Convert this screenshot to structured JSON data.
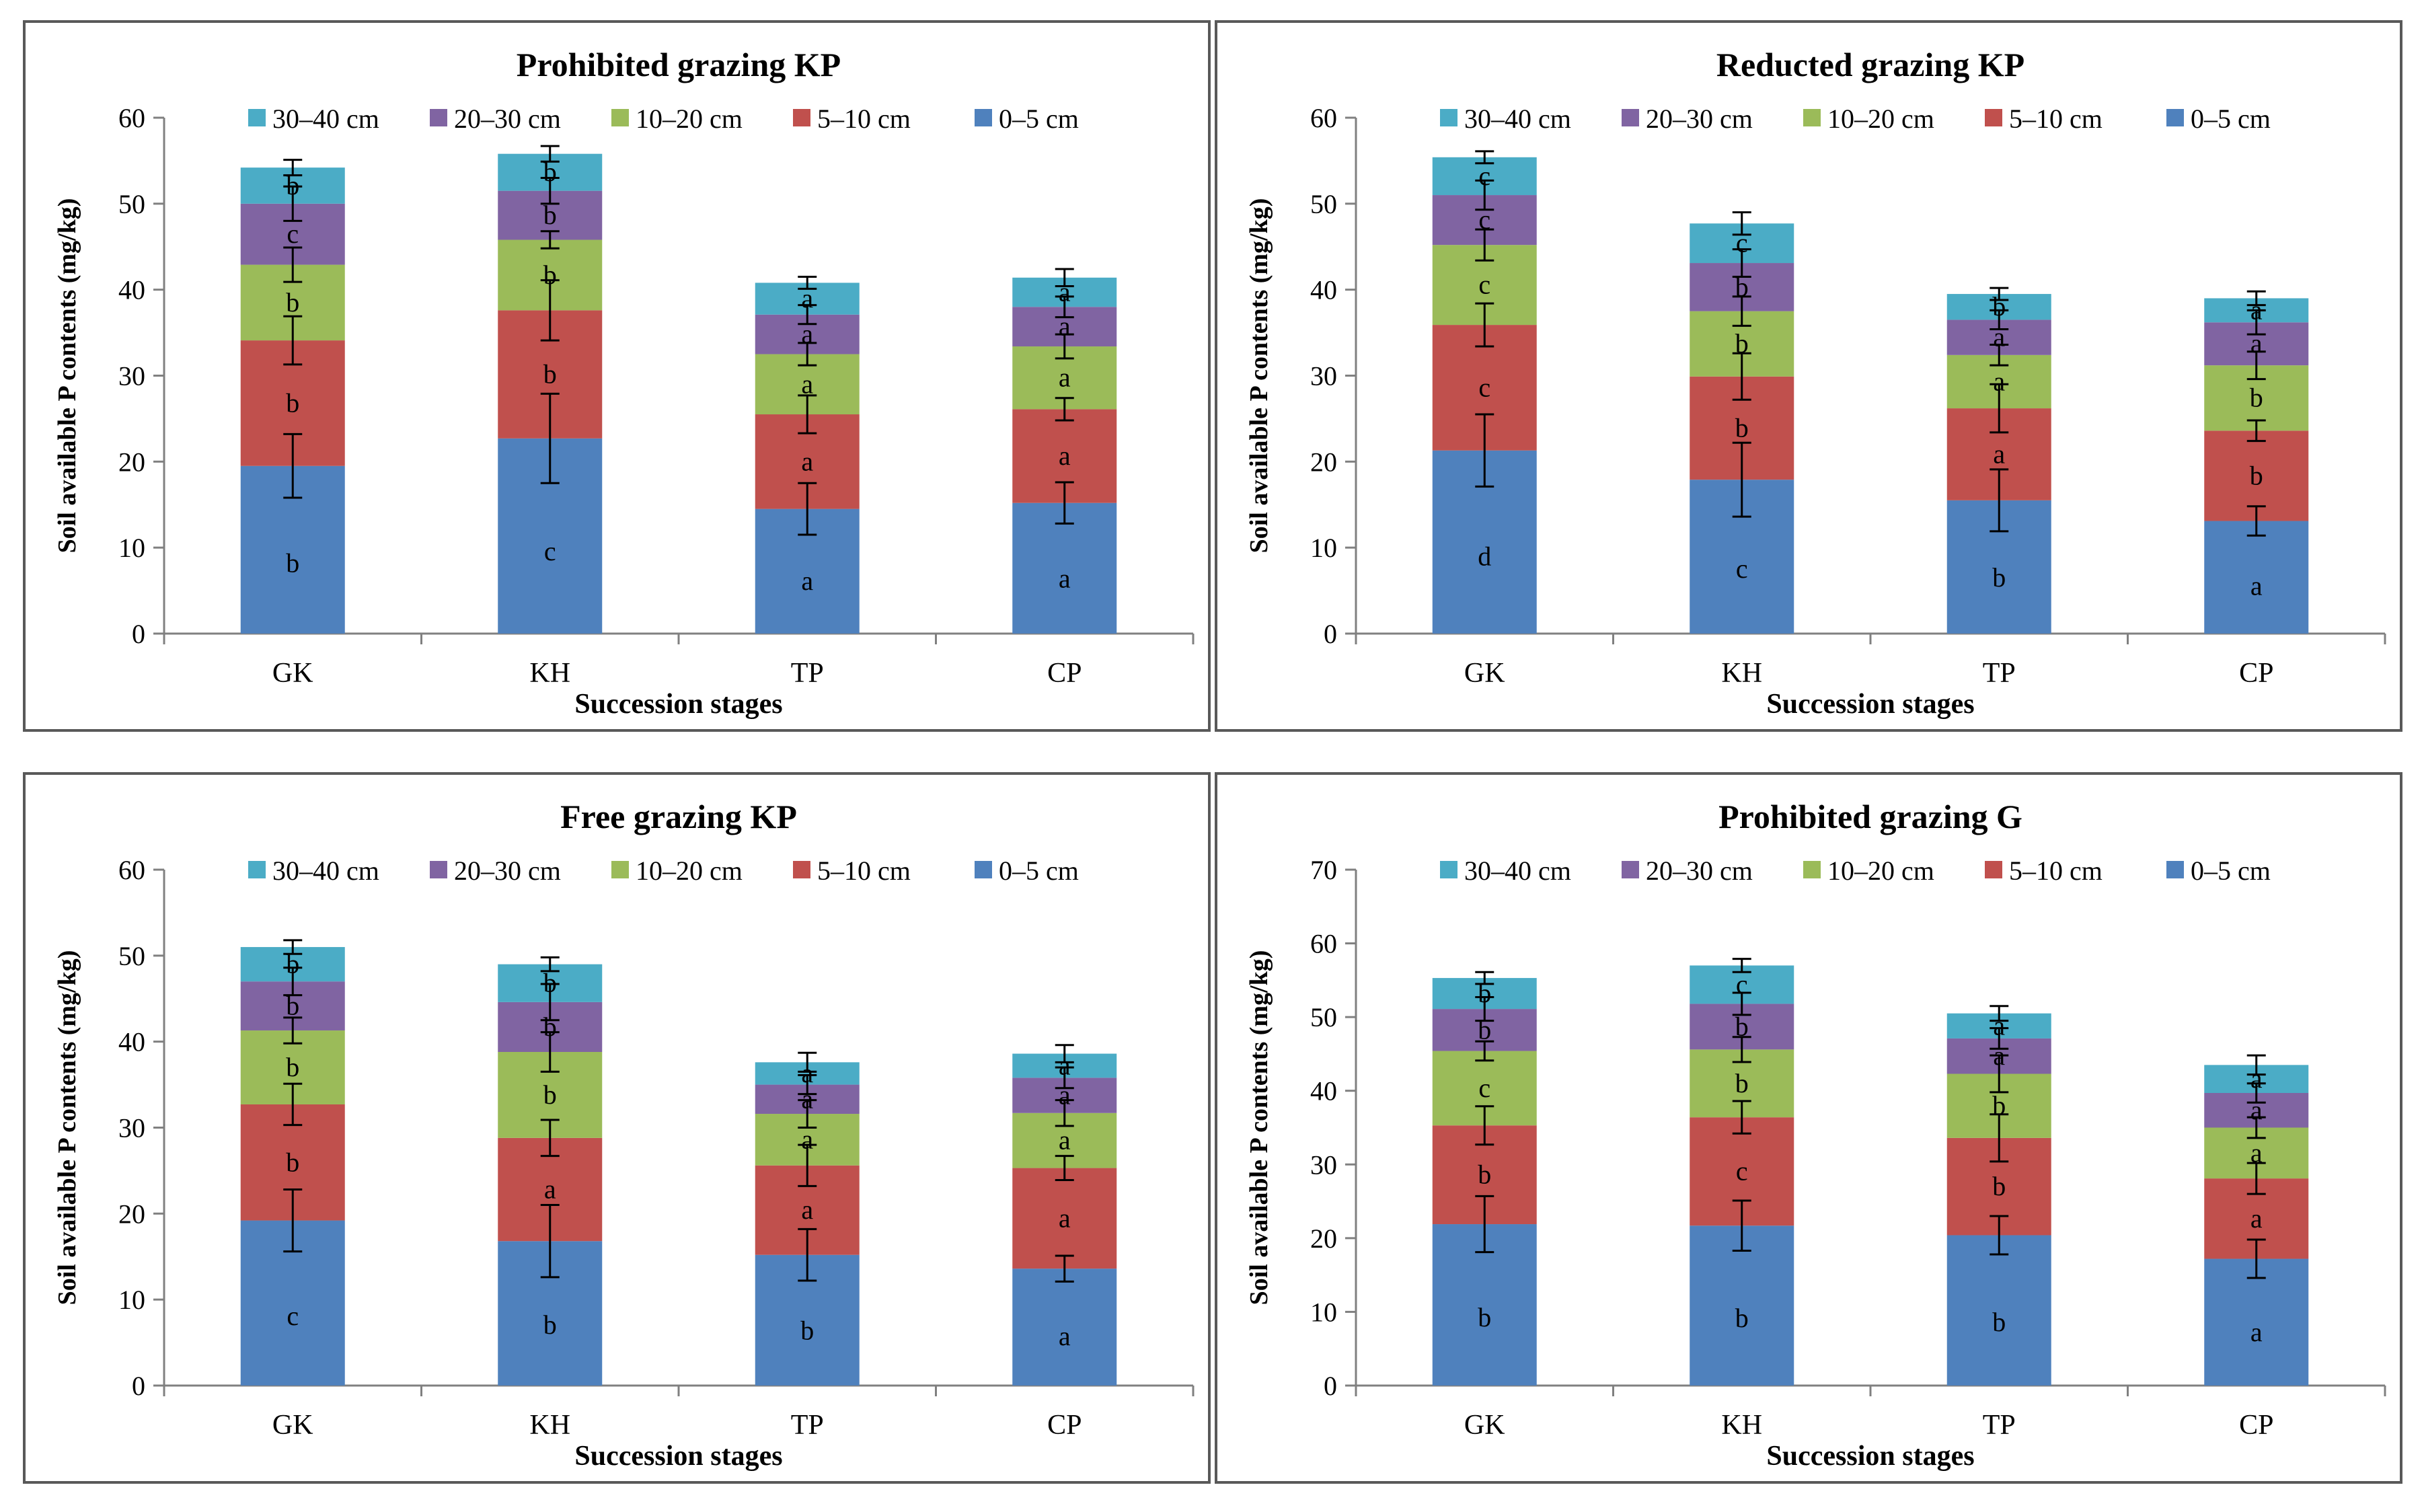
{
  "chart_data": [
    {
      "type": "bar",
      "stacked": true,
      "title": "Prohibited grazing KP",
      "xlabel": "Succession stages",
      "ylabel": "Soil available P contents (mg/kg)",
      "ylim": [
        0,
        60
      ],
      "yticks": [
        0,
        10,
        20,
        30,
        40,
        50,
        60
      ],
      "categories": [
        "GK",
        "KH",
        "TP",
        "CP"
      ],
      "legend_position": "top",
      "series": [
        {
          "name": "0–5 cm",
          "color": "#4F81BD",
          "values": [
            19.5,
            22.7,
            14.5,
            15.2
          ],
          "errors": [
            3.7,
            5.2,
            3.0,
            2.4
          ],
          "letters": [
            "b",
            "c",
            "a",
            "a"
          ]
        },
        {
          "name": "5–10 cm",
          "color": "#C0504D",
          "values": [
            14.6,
            14.9,
            11.0,
            10.9
          ],
          "errors": [
            2.8,
            3.5,
            2.2,
            1.3
          ],
          "letters": [
            "b",
            "b",
            "a",
            "a"
          ]
        },
        {
          "name": "10–20 cm",
          "color": "#9BBB59",
          "values": [
            8.8,
            8.2,
            7.0,
            7.3
          ],
          "errors": [
            2.0,
            1.0,
            1.3,
            1.4
          ],
          "letters": [
            "b",
            "b",
            "a",
            "a"
          ]
        },
        {
          "name": "20–30 cm",
          "color": "#8064A2",
          "values": [
            7.1,
            5.7,
            4.6,
            4.6
          ],
          "errors": [
            2.0,
            1.5,
            1.1,
            1.2
          ],
          "letters": [
            "c",
            "b",
            "a",
            "a"
          ]
        },
        {
          "name": "30–40 cm",
          "color": "#4BACC6",
          "values": [
            4.2,
            4.3,
            3.7,
            3.4
          ],
          "errors": [
            0.9,
            0.9,
            0.7,
            1.0
          ],
          "letters": [
            "b",
            "b",
            "a",
            "a"
          ]
        }
      ]
    },
    {
      "type": "bar",
      "stacked": true,
      "title": "Reducted grazing KP",
      "xlabel": "Succession stages",
      "ylabel": "Soil available P contents (mg/kg)",
      "ylim": [
        0,
        60
      ],
      "yticks": [
        0,
        10,
        20,
        30,
        40,
        50,
        60
      ],
      "categories": [
        "GK",
        "KH",
        "TP",
        "CP"
      ],
      "legend_position": "top",
      "series": [
        {
          "name": "0–5 cm",
          "color": "#4F81BD",
          "values": [
            21.3,
            17.9,
            15.5,
            13.1
          ],
          "errors": [
            4.2,
            4.3,
            3.6,
            1.7
          ],
          "letters": [
            "d",
            "c",
            "b",
            "a"
          ]
        },
        {
          "name": "5–10 cm",
          "color": "#C0504D",
          "values": [
            14.6,
            12.0,
            10.7,
            10.5
          ],
          "errors": [
            2.5,
            2.7,
            2.8,
            1.2
          ],
          "letters": [
            "c",
            "b",
            "a",
            "b"
          ]
        },
        {
          "name": "10–20 cm",
          "color": "#9BBB59",
          "values": [
            9.3,
            7.6,
            6.2,
            7.6
          ],
          "errors": [
            1.8,
            1.7,
            1.2,
            1.6
          ],
          "letters": [
            "c",
            "b",
            "a",
            "b"
          ]
        },
        {
          "name": "20–30 cm",
          "color": "#8064A2",
          "values": [
            5.8,
            5.6,
            4.1,
            5.0
          ],
          "errors": [
            1.7,
            1.6,
            1.1,
            1.4
          ],
          "letters": [
            "c",
            "b",
            "a",
            "a"
          ]
        },
        {
          "name": "30–40 cm",
          "color": "#4BACC6",
          "values": [
            4.4,
            4.6,
            3.0,
            2.8
          ],
          "errors": [
            0.7,
            1.3,
            0.7,
            0.8
          ],
          "letters": [
            "c",
            "c",
            "b",
            "a"
          ]
        }
      ]
    },
    {
      "type": "bar",
      "stacked": true,
      "title": "Free grazing KP",
      "xlabel": "Succession stages",
      "ylabel": "Soil available P contents (mg/kg)",
      "ylim": [
        0,
        60
      ],
      "yticks": [
        0,
        10,
        20,
        30,
        40,
        50,
        60
      ],
      "categories": [
        "GK",
        "KH",
        "TP",
        "CP"
      ],
      "legend_position": "top",
      "series": [
        {
          "name": "0–5 cm",
          "color": "#4F81BD",
          "values": [
            19.2,
            16.8,
            15.2,
            13.6
          ],
          "errors": [
            3.6,
            4.2,
            3.0,
            1.5
          ],
          "letters": [
            "c",
            "b",
            "b",
            "a"
          ]
        },
        {
          "name": "5–10 cm",
          "color": "#C0504D",
          "values": [
            13.5,
            12.0,
            10.4,
            11.7
          ],
          "errors": [
            2.4,
            2.1,
            2.4,
            1.4
          ],
          "letters": [
            "b",
            "a",
            "a",
            "a"
          ]
        },
        {
          "name": "10–20 cm",
          "color": "#9BBB59",
          "values": [
            8.6,
            10.0,
            6.0,
            6.4
          ],
          "errors": [
            1.5,
            2.3,
            1.6,
            1.5
          ],
          "letters": [
            "b",
            "b",
            "a",
            "a"
          ]
        },
        {
          "name": "20–30 cm",
          "color": "#8064A2",
          "values": [
            5.7,
            5.8,
            3.4,
            4.1
          ],
          "errors": [
            1.6,
            2.1,
            1.1,
            1.2
          ],
          "letters": [
            "b",
            "b",
            "a",
            "a"
          ]
        },
        {
          "name": "30–40 cm",
          "color": "#4BACC6",
          "values": [
            4.0,
            4.4,
            2.6,
            2.8
          ],
          "errors": [
            0.8,
            0.8,
            1.1,
            1.0
          ],
          "letters": [
            "b",
            "b",
            "a",
            "a"
          ]
        }
      ]
    },
    {
      "type": "bar",
      "stacked": true,
      "title": "Prohibited grazing G",
      "xlabel": "Succession stages",
      "ylabel": "Soil available P contents (mg/kg)",
      "ylim": [
        0,
        70
      ],
      "yticks": [
        0,
        10,
        20,
        30,
        40,
        50,
        60,
        70
      ],
      "categories": [
        "GK",
        "KH",
        "TP",
        "CP"
      ],
      "legend_position": "top",
      "series": [
        {
          "name": "0–5 cm",
          "color": "#4F81BD",
          "values": [
            21.9,
            21.7,
            20.4,
            17.2
          ],
          "errors": [
            3.8,
            3.4,
            2.6,
            2.6
          ],
          "letters": [
            "b",
            "b",
            "b",
            "a"
          ]
        },
        {
          "name": "5–10 cm",
          "color": "#C0504D",
          "values": [
            13.4,
            14.7,
            13.2,
            10.9
          ],
          "errors": [
            2.6,
            2.2,
            3.2,
            2.1
          ],
          "letters": [
            "b",
            "c",
            "b",
            "a"
          ]
        },
        {
          "name": "10–20 cm",
          "color": "#9BBB59",
          "values": [
            10.1,
            9.2,
            8.7,
            6.9
          ],
          "errors": [
            1.3,
            1.7,
            2.5,
            1.4
          ],
          "letters": [
            "c",
            "b",
            "b",
            "a"
          ]
        },
        {
          "name": "20–30 cm",
          "color": "#8064A2",
          "values": [
            5.7,
            6.2,
            4.8,
            4.7
          ],
          "errors": [
            1.6,
            1.5,
            1.4,
            1.3
          ],
          "letters": [
            "b",
            "b",
            "a",
            "a"
          ]
        },
        {
          "name": "30–40 cm",
          "color": "#4BACC6",
          "values": [
            4.2,
            5.2,
            3.4,
            3.8
          ],
          "errors": [
            0.8,
            0.9,
            1.0,
            1.3
          ],
          "letters": [
            "b",
            "c",
            "a",
            "a"
          ]
        }
      ]
    }
  ]
}
